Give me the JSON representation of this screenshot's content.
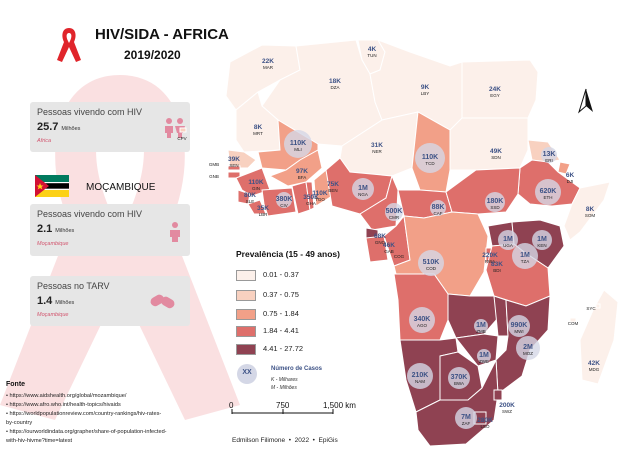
{
  "title": "HIV/SIDA - AFRICA",
  "subtitle": "2019/2020",
  "colors": {
    "class1": "#fcf0ea",
    "class2": "#f8d1c0",
    "class3": "#f2a088",
    "class4": "#de6f6b",
    "class5": "#8f4252",
    "accent": "#d2566f",
    "bubble": "#d4d7e6",
    "count_text": "#3d5286"
  },
  "cards": {
    "africa_living": {
      "label": "Pessoas vivendo com HIV",
      "value": "25.7",
      "unit": "Milhões",
      "region": "Africa"
    },
    "moz_living": {
      "label": "Pessoas vivendo com HIV",
      "value": "2.1",
      "unit": "Milhões",
      "region": "Moçambique"
    },
    "moz_tarv": {
      "label": "Pessoas no TARV",
      "value": "1.4",
      "unit": "Milhões",
      "region": "Moçambique"
    }
  },
  "country_heading": "MOÇAMBIQUE",
  "legend": {
    "title": "Prevalência (15 - 49 anos)",
    "classes": [
      "0.01 - 0.37",
      "0.37 - 0.75",
      "0.75 - 1.84",
      "1.84 - 4.41",
      "4.41 - 27.72"
    ],
    "bubble_symbol": "XX",
    "bubble_title": "Número de Casos",
    "bubble_k": "K - Milhares",
    "bubble_m": "M - Milhões"
  },
  "scalebar": {
    "ticks": [
      "0",
      "750",
      "1,500 km"
    ]
  },
  "north_arrow": "north-arrow-icon",
  "author": "Edmilson Filimone  •  2022  •  EpiGis",
  "sources": {
    "heading": "Fonte",
    "lines": [
      "• https://www.aidshealth.org/global/mozambique/",
      "• https://www.afro.who.int/health-topics/hivaids",
      "• https://worldpopulationreview.com/country-rankings/hiv-rates-",
      "by-country",
      "• https://ourworldindata.org/grapher/share-of-population-infected-",
      "with-hiv-hivme?time=latest"
    ]
  },
  "countries": [
    {
      "code": "TUN",
      "cases": "4K",
      "cls": 0
    },
    {
      "code": "MAR",
      "cases": "22K",
      "cls": 0
    },
    {
      "code": "DZA",
      "cases": "18K",
      "cls": 0
    },
    {
      "code": "LBY",
      "cases": "9K",
      "cls": 0
    },
    {
      "code": "EGY",
      "cases": "24K",
      "cls": 0
    },
    {
      "code": "MRT",
      "cases": "8K",
      "cls": 0
    },
    {
      "code": "MLI",
      "cases": "110K",
      "cls": 2
    },
    {
      "code": "NER",
      "cases": "31K",
      "cls": 0
    },
    {
      "code": "TCD",
      "cases": "110K",
      "cls": 2
    },
    {
      "code": "SDN",
      "cases": "49K",
      "cls": 0
    },
    {
      "code": "ERI",
      "cases": "13K",
      "cls": 1
    },
    {
      "code": "DJI",
      "cases": "6K",
      "cls": 2
    },
    {
      "code": "ETH",
      "cases": "620K",
      "cls": 3
    },
    {
      "code": "SOM",
      "cases": "8K",
      "cls": 0
    },
    {
      "code": "SEN",
      "cases": "39K",
      "cls": 1
    },
    {
      "code": "GMB",
      "cases": "",
      "cls": 3
    },
    {
      "code": "GNB",
      "cases": "",
      "cls": 3
    },
    {
      "code": "GIN",
      "cases": "110K",
      "cls": 3
    },
    {
      "code": "SLE",
      "cases": "80K",
      "cls": 3
    },
    {
      "code": "LBR",
      "cases": "35K",
      "cls": 3
    },
    {
      "code": "CIV",
      "cases": "380K",
      "cls": 3
    },
    {
      "code": "BFA",
      "cases": "97K",
      "cls": 2
    },
    {
      "code": "GHA",
      "cases": "350K",
      "cls": 3
    },
    {
      "code": "TGO",
      "cases": "110K",
      "cls": 3
    },
    {
      "code": "BEN",
      "cases": "75K",
      "cls": 2
    },
    {
      "code": "NGA",
      "cases": "1M",
      "cls": 3
    },
    {
      "code": "CMR",
      "cases": "500K",
      "cls": 3
    },
    {
      "code": "CAF",
      "cases": "88K",
      "cls": 3
    },
    {
      "code": "SSD",
      "cases": "180K",
      "cls": 3
    },
    {
      "code": "GNQ",
      "cases": "68K",
      "cls": 4
    },
    {
      "code": "GAB",
      "cases": "46K",
      "cls": 3
    },
    {
      "code": "COG",
      "cases": "",
      "cls": 3
    },
    {
      "code": "COD",
      "cases": "510K",
      "cls": 2
    },
    {
      "code": "UGA",
      "cases": "1M",
      "cls": 4
    },
    {
      "code": "KEN",
      "cases": "1M",
      "cls": 4
    },
    {
      "code": "RWA",
      "cases": "220K",
      "cls": 3
    },
    {
      "code": "BDI",
      "cases": "83K",
      "cls": 3
    },
    {
      "code": "TZA",
      "cases": "1M",
      "cls": 3
    },
    {
      "code": "AGO",
      "cases": "340K",
      "cls": 3
    },
    {
      "code": "ZMB",
      "cases": "1M",
      "cls": 4
    },
    {
      "code": "MWI",
      "cases": "990K",
      "cls": 4
    },
    {
      "code": "MOZ",
      "cases": "2M",
      "cls": 4
    },
    {
      "code": "ZWE",
      "cases": "1M",
      "cls": 4
    },
    {
      "code": "NAM",
      "cases": "210K",
      "cls": 4
    },
    {
      "code": "BWA",
      "cases": "370K",
      "cls": 4
    },
    {
      "code": "ZAF",
      "cases": "7M",
      "cls": 4
    },
    {
      "code": "LSO",
      "cases": "280K",
      "cls": 4
    },
    {
      "code": "SWZ",
      "cases": "200K",
      "cls": 4
    },
    {
      "code": "MDG",
      "cases": "42K",
      "cls": 0
    },
    {
      "code": "COM",
      "cases": "",
      "cls": 0
    },
    {
      "code": "SYC",
      "cases": "",
      "cls": 0
    },
    {
      "code": "CPV",
      "cases": "",
      "cls": 1
    }
  ]
}
